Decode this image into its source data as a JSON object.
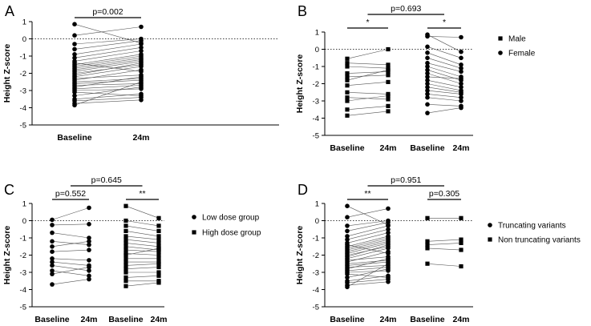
{
  "chart_data": [
    {
      "panel": "A",
      "type": "scatter",
      "ylabel": "Height Z-score",
      "ylim": [
        -5,
        1
      ],
      "yticks": [
        1,
        0,
        -1,
        -2,
        -3,
        -4,
        -5
      ],
      "categories": [
        "Baseline",
        "24m"
      ],
      "reference_line_y": 0,
      "annotations": [
        {
          "text": "p=0.002",
          "between": [
            0,
            1
          ]
        }
      ],
      "groups": [
        {
          "marker": "circle",
          "x": [
            0,
            1
          ],
          "pairs": [
            [
              0.85,
              -0.25
            ],
            [
              0.2,
              0.7
            ],
            [
              -0.3,
              0.0
            ],
            [
              -0.6,
              -0.1
            ],
            [
              -0.9,
              -0.3
            ],
            [
              -1.1,
              -0.5
            ],
            [
              -1.3,
              -0.7
            ],
            [
              -1.4,
              -1.9
            ],
            [
              -1.5,
              -0.9
            ],
            [
              -1.6,
              -1.0
            ],
            [
              -1.7,
              -1.1
            ],
            [
              -1.8,
              -1.2
            ],
            [
              -1.9,
              -1.3
            ],
            [
              -2.0,
              -1.5
            ],
            [
              -2.1,
              -1.4
            ],
            [
              -2.2,
              -1.6
            ],
            [
              -2.3,
              -2.1
            ],
            [
              -2.4,
              -1.8
            ],
            [
              -2.5,
              -2.3
            ],
            [
              -2.6,
              -2.4
            ],
            [
              -2.7,
              -2.6
            ],
            [
              -2.8,
              -2.2
            ],
            [
              -2.9,
              -2.7
            ],
            [
              -3.0,
              -2.9
            ],
            [
              -3.1,
              -3.3
            ],
            [
              -3.3,
              -2.8
            ],
            [
              -3.5,
              -3.2
            ],
            [
              -3.6,
              -3.4
            ],
            [
              -3.75,
              -3.55
            ],
            [
              -3.85,
              -2.5
            ]
          ]
        }
      ]
    },
    {
      "panel": "B",
      "type": "scatter",
      "ylabel": "Height Z-score",
      "ylim": [
        -5,
        1
      ],
      "yticks": [
        1,
        0,
        -1,
        -2,
        -3,
        -4,
        -5
      ],
      "categories": [
        "Baseline",
        "24m",
        "Baseline",
        "24m"
      ],
      "reference_line_y": 0,
      "annotations": [
        {
          "text": "*",
          "between": [
            0,
            1
          ]
        },
        {
          "text": "*",
          "between": [
            2,
            3
          ]
        },
        {
          "text": "p=0.693",
          "between": [
            0.5,
            2.5
          ]
        }
      ],
      "legend": [
        {
          "label": "Male",
          "marker": "square"
        },
        {
          "label": "Female",
          "marker": "circle"
        }
      ],
      "groups": [
        {
          "name": "Male",
          "marker": "square",
          "x": [
            0,
            1
          ],
          "pairs": [
            [
              -0.55,
              0.0
            ],
            [
              -0.8,
              -0.9
            ],
            [
              -1.0,
              -1.1
            ],
            [
              -1.4,
              -1.3
            ],
            [
              -1.6,
              -1.5
            ],
            [
              -1.8,
              -1.2
            ],
            [
              -2.1,
              -1.9
            ],
            [
              -2.5,
              -2.6
            ],
            [
              -2.8,
              -2.9
            ],
            [
              -3.0,
              -2.7
            ],
            [
              -3.5,
              -3.3
            ],
            [
              -3.85,
              -3.6
            ]
          ]
        },
        {
          "name": "Female",
          "marker": "circle",
          "x": [
            2,
            3
          ],
          "pairs": [
            [
              0.85,
              -0.15
            ],
            [
              0.75,
              0.7
            ],
            [
              0.15,
              -0.5
            ],
            [
              -0.2,
              -0.9
            ],
            [
              -0.5,
              -1.1
            ],
            [
              -0.8,
              -1.3
            ],
            [
              -1.0,
              -1.6
            ],
            [
              -1.2,
              -1.8
            ],
            [
              -1.4,
              -2.0
            ],
            [
              -1.6,
              -1.7
            ],
            [
              -1.8,
              -2.2
            ],
            [
              -2.0,
              -2.4
            ],
            [
              -2.2,
              -2.5
            ],
            [
              -2.4,
              -2.6
            ],
            [
              -2.6,
              -2.8
            ],
            [
              -2.8,
              -3.0
            ],
            [
              -3.2,
              -3.3
            ],
            [
              -3.7,
              -3.4
            ]
          ]
        }
      ]
    },
    {
      "panel": "C",
      "type": "scatter",
      "ylabel": "Height Z-score",
      "ylim": [
        -5,
        1
      ],
      "yticks": [
        1,
        0,
        -1,
        -2,
        -3,
        -4,
        -5
      ],
      "categories": [
        "Baseline",
        "24m",
        "Baseline",
        "24m"
      ],
      "reference_line_y": 0,
      "annotations": [
        {
          "text": "p=0.552",
          "between": [
            0,
            1
          ]
        },
        {
          "text": "**",
          "between": [
            2,
            3
          ]
        },
        {
          "text": "p=0.645",
          "between": [
            0.5,
            2.5
          ]
        }
      ],
      "legend": [
        {
          "label": "Low dose group",
          "marker": "circle"
        },
        {
          "label": "High dose group",
          "marker": "square"
        }
      ],
      "groups": [
        {
          "name": "Low dose group",
          "marker": "circle",
          "x": [
            0,
            1
          ],
          "pairs": [
            [
              0.05,
              0.75
            ],
            [
              -0.25,
              -0.2
            ],
            [
              -0.7,
              -1.0
            ],
            [
              -1.2,
              -1.4
            ],
            [
              -1.5,
              -1.2
            ],
            [
              -1.8,
              -1.7
            ],
            [
              -2.2,
              -2.3
            ],
            [
              -2.4,
              -2.6
            ],
            [
              -2.6,
              -2.9
            ],
            [
              -2.9,
              -3.2
            ],
            [
              -3.1,
              -2.7
            ],
            [
              -3.7,
              -3.4
            ]
          ]
        },
        {
          "name": "High dose group",
          "marker": "square",
          "x": [
            2,
            3
          ],
          "pairs": [
            [
              0.85,
              0.15
            ],
            [
              0.0,
              -0.3
            ],
            [
              -0.3,
              -0.6
            ],
            [
              -0.6,
              -0.9
            ],
            [
              -0.9,
              -1.1
            ],
            [
              -1.1,
              -1.3
            ],
            [
              -1.3,
              -1.5
            ],
            [
              -1.5,
              -1.7
            ],
            [
              -1.7,
              -1.8
            ],
            [
              -1.9,
              -2.0
            ],
            [
              -2.0,
              -1.6
            ],
            [
              -2.2,
              -2.2
            ],
            [
              -2.4,
              -2.4
            ],
            [
              -2.6,
              -2.5
            ],
            [
              -2.8,
              -2.7
            ],
            [
              -3.0,
              -3.0
            ],
            [
              -3.3,
              -3.2
            ],
            [
              -3.5,
              -3.5
            ],
            [
              -3.8,
              -3.6
            ]
          ]
        }
      ]
    },
    {
      "panel": "D",
      "type": "scatter",
      "ylabel": "Height Z-score",
      "ylim": [
        -5,
        1
      ],
      "yticks": [
        1,
        0,
        -1,
        -2,
        -3,
        -4,
        -5
      ],
      "categories": [
        "Baseline",
        "24m",
        "Baseline",
        "24m"
      ],
      "reference_line_y": 0,
      "annotations": [
        {
          "text": "**",
          "between": [
            0,
            1
          ]
        },
        {
          "text": "p=0.305",
          "between": [
            2,
            3
          ]
        },
        {
          "text": "p=0.951",
          "between": [
            0.5,
            2.5
          ]
        }
      ],
      "legend": [
        {
          "label": "Truncating variants",
          "marker": "circle"
        },
        {
          "label": "Non truncating variants",
          "marker": "square"
        }
      ],
      "groups": [
        {
          "name": "Truncating variants",
          "marker": "circle",
          "x": [
            0,
            1
          ],
          "pairs": [
            [
              0.85,
              -0.25
            ],
            [
              0.2,
              0.7
            ],
            [
              -0.3,
              0.0
            ],
            [
              -0.6,
              -0.1
            ],
            [
              -0.9,
              -0.3
            ],
            [
              -1.1,
              -0.5
            ],
            [
              -1.3,
              -0.7
            ],
            [
              -1.4,
              -1.9
            ],
            [
              -1.5,
              -0.9
            ],
            [
              -1.6,
              -1.0
            ],
            [
              -1.7,
              -1.1
            ],
            [
              -1.8,
              -1.2
            ],
            [
              -1.9,
              -1.3
            ],
            [
              -2.0,
              -1.5
            ],
            [
              -2.1,
              -1.4
            ],
            [
              -2.2,
              -1.6
            ],
            [
              -2.3,
              -2.1
            ],
            [
              -2.4,
              -1.8
            ],
            [
              -2.5,
              -2.3
            ],
            [
              -2.6,
              -2.4
            ],
            [
              -2.7,
              -2.6
            ],
            [
              -2.8,
              -2.2
            ],
            [
              -2.9,
              -2.7
            ],
            [
              -3.0,
              -2.9
            ],
            [
              -3.1,
              -3.3
            ],
            [
              -3.3,
              -2.8
            ],
            [
              -3.5,
              -3.2
            ],
            [
              -3.6,
              -3.4
            ],
            [
              -3.75,
              -3.55
            ],
            [
              -3.85,
              -2.5
            ]
          ]
        },
        {
          "name": "Non truncating variants",
          "marker": "square",
          "x": [
            2,
            3
          ],
          "pairs": [
            [
              0.15,
              0.15
            ],
            [
              -1.2,
              -1.1
            ],
            [
              -1.4,
              -1.3
            ],
            [
              -1.6,
              -1.7
            ],
            [
              -2.5,
              -2.65
            ]
          ]
        }
      ]
    }
  ]
}
